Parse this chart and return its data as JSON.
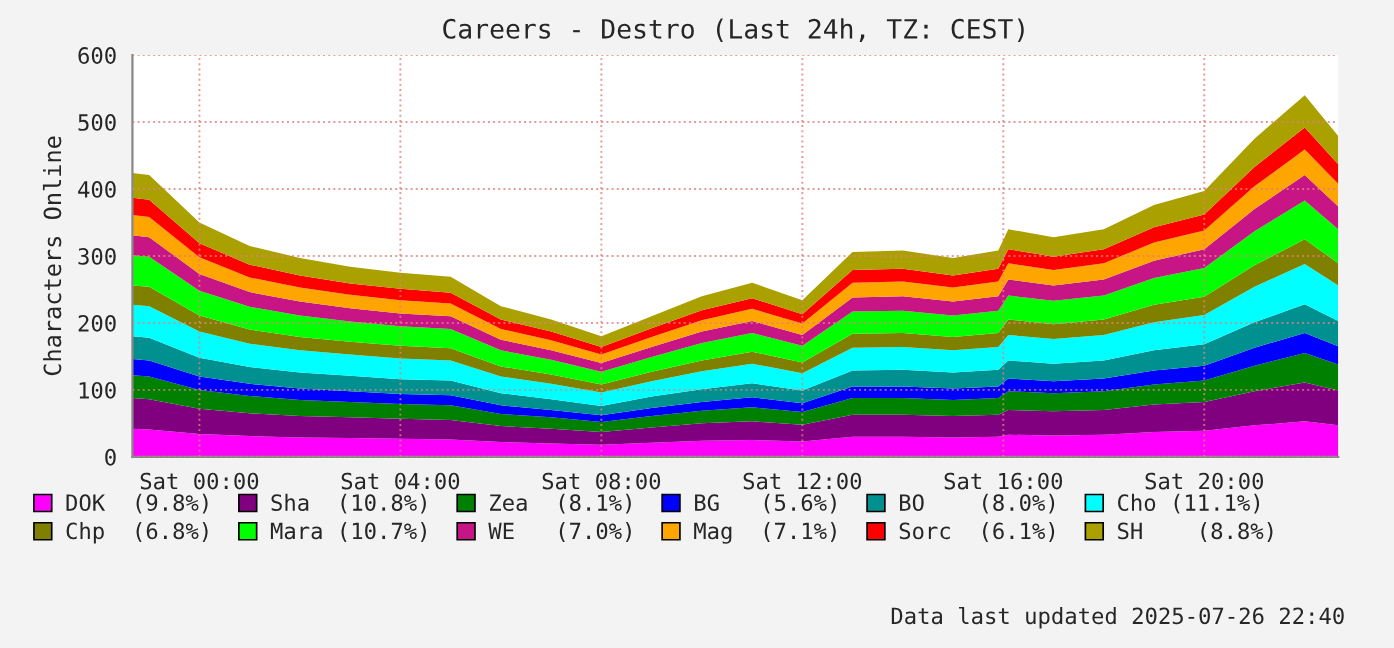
{
  "chart_data": {
    "type": "area",
    "stacked": true,
    "title": "Careers - Destro (Last 24h, TZ: CEST)",
    "ylabel": "Characters Online",
    "x": [
      "2025-07-25T22:40",
      "2025-07-25T23:00",
      "2025-07-26T00:00",
      "2025-07-26T01:00",
      "2025-07-26T02:00",
      "2025-07-26T03:00",
      "2025-07-26T04:00",
      "2025-07-26T05:00",
      "2025-07-26T06:00",
      "2025-07-26T07:00",
      "2025-07-26T08:00",
      "2025-07-26T09:00",
      "2025-07-26T10:00",
      "2025-07-26T11:00",
      "2025-07-26T12:00",
      "2025-07-26T13:00",
      "2025-07-26T14:00",
      "2025-07-26T15:00",
      "2025-07-26T15:54",
      "2025-07-26T16:06",
      "2025-07-26T17:00",
      "2025-07-26T18:00",
      "2025-07-26T19:00",
      "2025-07-26T20:00",
      "2025-07-26T21:00",
      "2025-07-26T22:00",
      "2025-07-26T22:40"
    ],
    "xlim": [
      "2025-07-25T22:40",
      "2025-07-26T22:40"
    ],
    "xticks": [
      {
        "value": "2025-07-26T00:00",
        "label": "Sat 00:00"
      },
      {
        "value": "2025-07-26T04:00",
        "label": "Sat 04:00"
      },
      {
        "value": "2025-07-26T08:00",
        "label": "Sat 08:00"
      },
      {
        "value": "2025-07-26T12:00",
        "label": "Sat 12:00"
      },
      {
        "value": "2025-07-26T16:00",
        "label": "Sat 16:00"
      },
      {
        "value": "2025-07-26T20:00",
        "label": "Sat 20:00"
      }
    ],
    "ylim": [
      0,
      600
    ],
    "yticks": [
      0,
      100,
      200,
      300,
      400,
      500,
      600
    ],
    "grid": true,
    "legend": "bottom",
    "annotations": [
      "Data last updated 2025-07-26 22:40"
    ],
    "series": [
      {
        "name": "DOK  (9.8%)",
        "color": "#ff00ff",
        "values": [
          42,
          41,
          34,
          31,
          29,
          28,
          27,
          26,
          22,
          20,
          18,
          21,
          24,
          25,
          23,
          30,
          30,
          29,
          30,
          33,
          32,
          33,
          37,
          39,
          47,
          53,
          47
        ]
      },
      {
        "name": "Sha  (10.8%)",
        "color": "#800080",
        "values": [
          46,
          45,
          38,
          34,
          32,
          31,
          30,
          29,
          24,
          22,
          19,
          23,
          26,
          28,
          25,
          33,
          33,
          32,
          33,
          37,
          36,
          37,
          41,
          43,
          51,
          58,
          52
        ]
      },
      {
        "name": "Zea  (8.1%)",
        "color": "#008000",
        "values": [
          34,
          34,
          28,
          26,
          24,
          23,
          22,
          22,
          18,
          17,
          15,
          17,
          19,
          21,
          19,
          25,
          25,
          24,
          25,
          28,
          27,
          28,
          30,
          32,
          38,
          44,
          39
        ]
      },
      {
        "name": "BG   (5.6%)",
        "color": "#0000ff",
        "values": [
          24,
          24,
          20,
          18,
          17,
          16,
          15,
          15,
          13,
          11,
          10,
          12,
          13,
          15,
          13,
          17,
          17,
          17,
          17,
          19,
          18,
          19,
          21,
          22,
          27,
          30,
          27
        ]
      },
      {
        "name": "BO    (8.0%)",
        "color": "#009090",
        "values": [
          34,
          34,
          28,
          25,
          24,
          23,
          22,
          22,
          18,
          16,
          14,
          17,
          19,
          21,
          19,
          24,
          25,
          24,
          25,
          27,
          26,
          27,
          30,
          32,
          38,
          43,
          38
        ]
      },
      {
        "name": "Cho (11.1%)",
        "color": "#00ffff",
        "values": [
          47,
          47,
          39,
          35,
          33,
          32,
          31,
          30,
          25,
          23,
          20,
          23,
          27,
          29,
          26,
          34,
          34,
          33,
          34,
          38,
          37,
          38,
          42,
          44,
          53,
          60,
          53
        ]
      },
      {
        "name": "Chp  (6.8%)",
        "color": "#808000",
        "values": [
          29,
          29,
          24,
          21,
          20,
          19,
          19,
          18,
          15,
          14,
          12,
          14,
          16,
          18,
          16,
          21,
          21,
          20,
          21,
          23,
          22,
          23,
          26,
          27,
          32,
          37,
          33
        ]
      },
      {
        "name": "Mara (10.7%)",
        "color": "#00ff00",
        "values": [
          45,
          45,
          37,
          34,
          32,
          30,
          29,
          29,
          24,
          22,
          19,
          22,
          26,
          28,
          25,
          33,
          33,
          32,
          33,
          36,
          35,
          36,
          40,
          43,
          51,
          58,
          51
        ]
      },
      {
        "name": "WE   (7.0%)",
        "color": "#c71585",
        "values": [
          30,
          29,
          25,
          22,
          21,
          20,
          19,
          19,
          16,
          14,
          13,
          15,
          17,
          18,
          16,
          21,
          22,
          21,
          22,
          24,
          23,
          24,
          26,
          28,
          33,
          38,
          34
        ]
      },
      {
        "name": "Mag  (7.1%)",
        "color": "#ffa500",
        "values": [
          30,
          30,
          25,
          22,
          21,
          20,
          20,
          19,
          16,
          15,
          13,
          15,
          17,
          18,
          17,
          22,
          22,
          21,
          22,
          24,
          23,
          24,
          27,
          28,
          34,
          38,
          34
        ]
      },
      {
        "name": "Sorc  (6.1%)",
        "color": "#ff0000",
        "values": [
          26,
          26,
          21,
          19,
          18,
          17,
          17,
          16,
          14,
          13,
          11,
          13,
          15,
          16,
          14,
          19,
          19,
          18,
          19,
          21,
          20,
          21,
          23,
          24,
          29,
          33,
          29
        ]
      },
      {
        "name": "SH    (8.8%)",
        "color": "#aaa000",
        "values": [
          37,
          37,
          31,
          28,
          26,
          25,
          24,
          24,
          20,
          18,
          16,
          18,
          21,
          23,
          21,
          27,
          27,
          26,
          27,
          30,
          29,
          30,
          33,
          35,
          42,
          48,
          42
        ]
      }
    ]
  }
}
